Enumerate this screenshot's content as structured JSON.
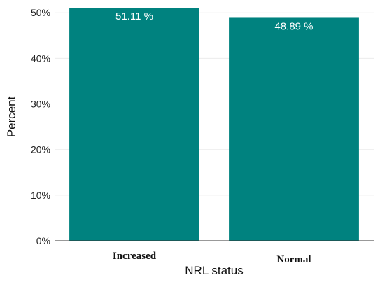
{
  "chart_data": {
    "type": "bar",
    "categories": [
      "Increased",
      "Normal"
    ],
    "values": [
      51.11,
      48.89
    ],
    "value_labels": [
      "51.11 %",
      "48.89 %"
    ],
    "xlabel": "NRL status",
    "ylabel": "Percent",
    "ylim": [
      0,
      51.11
    ],
    "yticks": [
      0,
      10,
      20,
      30,
      40,
      50
    ],
    "ytick_labels": [
      "0%",
      "10%",
      "20%",
      "30%",
      "40%",
      "50%"
    ],
    "grid": true,
    "bar_color": "#00827f"
  }
}
